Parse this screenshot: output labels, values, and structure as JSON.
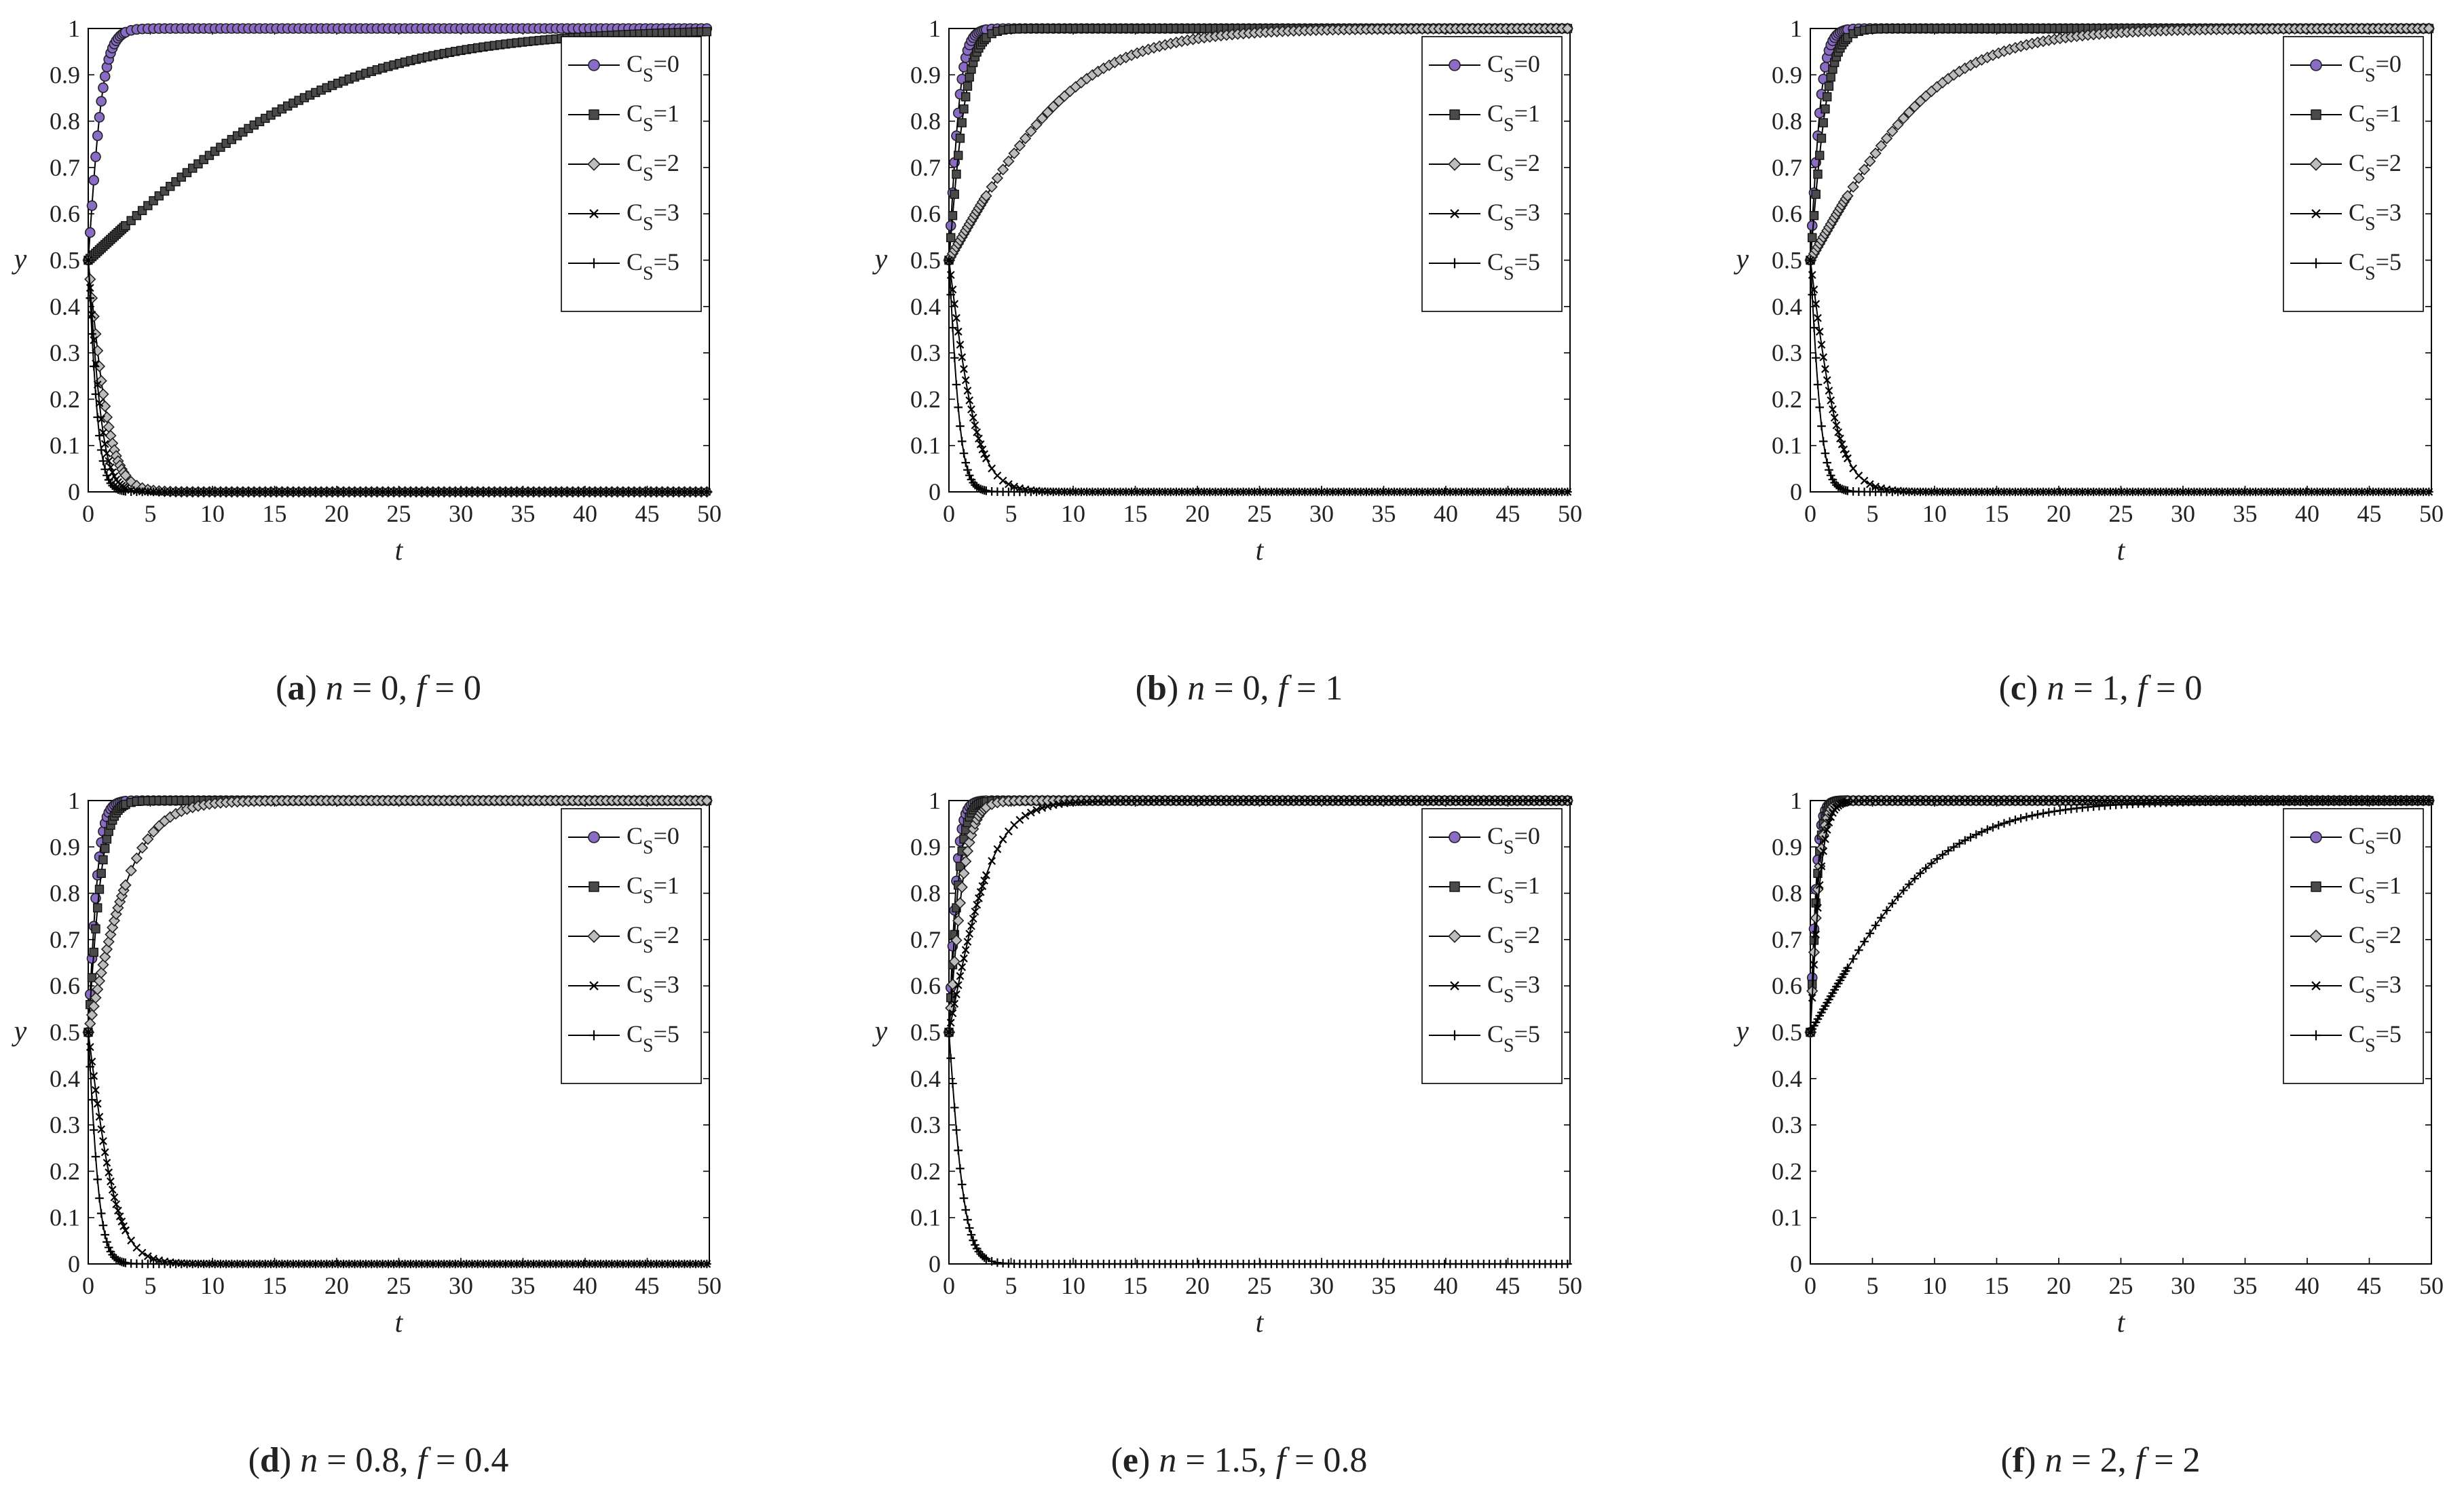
{
  "chart_data": [
    {
      "type": "line",
      "caption": {
        "letter": "a",
        "params": [
          {
            "symbol": "n",
            "value": "0"
          },
          {
            "symbol": "f",
            "value": "0"
          }
        ]
      },
      "xlabel": "t",
      "ylabel": "y",
      "xlim": [
        0,
        50
      ],
      "ylim": [
        0,
        1
      ],
      "xticks": [
        "0",
        "5",
        "10",
        "15",
        "20",
        "25",
        "30",
        "35",
        "40",
        "45",
        "50"
      ],
      "yticks": [
        "0",
        "0.1",
        "0.2",
        "0.3",
        "0.4",
        "0.5",
        "0.6",
        "0.7",
        "0.8",
        "0.9",
        "1"
      ],
      "legend_position": "top-right",
      "grid": false,
      "series": [
        {
          "name": "0",
          "marker": "circle",
          "shape": "rise",
          "k": 1.6,
          "end": 1
        },
        {
          "name": "1",
          "marker": "square",
          "shape": "rise",
          "k": 0.1,
          "end": 1
        },
        {
          "name": "2",
          "marker": "diamond",
          "shape": "decay",
          "k": 1.1,
          "end": 0
        },
        {
          "name": "3",
          "marker": "x",
          "shape": "decay",
          "k": 1.6,
          "end": 0
        },
        {
          "name": "5",
          "marker": "plus",
          "shape": "decay",
          "k": 2.2,
          "end": 0
        }
      ]
    },
    {
      "type": "line",
      "caption": {
        "letter": "b",
        "params": [
          {
            "symbol": "n",
            "value": "0"
          },
          {
            "symbol": "f",
            "value": "1"
          }
        ]
      },
      "xlabel": "t",
      "ylabel": "y",
      "xlim": [
        0,
        50
      ],
      "ylim": [
        0,
        1
      ],
      "xticks": [
        "0",
        "5",
        "10",
        "15",
        "20",
        "25",
        "30",
        "35",
        "40",
        "45",
        "50"
      ],
      "yticks": [
        "0",
        "0.1",
        "0.2",
        "0.3",
        "0.4",
        "0.5",
        "0.6",
        "0.7",
        "0.8",
        "0.9",
        "1"
      ],
      "legend_position": "top-right",
      "grid": false,
      "series": [
        {
          "name": "0",
          "marker": "circle",
          "shape": "rise",
          "k": 2.0,
          "end": 1
        },
        {
          "name": "1",
          "marker": "square",
          "shape": "rise",
          "k": 1.3,
          "end": 1
        },
        {
          "name": "2",
          "marker": "diamond",
          "shape": "rise",
          "k": 0.19,
          "end": 1
        },
        {
          "name": "3",
          "marker": "x",
          "shape": "decay",
          "k": 0.85,
          "end": 0
        },
        {
          "name": "5",
          "marker": "plus",
          "shape": "decay",
          "k": 2.0,
          "end": 0
        }
      ]
    },
    {
      "type": "line",
      "caption": {
        "letter": "c",
        "params": [
          {
            "symbol": "n",
            "value": "1"
          },
          {
            "symbol": "f",
            "value": "0"
          }
        ]
      },
      "xlabel": "t",
      "ylabel": "y",
      "xlim": [
        0,
        50
      ],
      "ylim": [
        0,
        1
      ],
      "xticks": [
        "0",
        "5",
        "10",
        "15",
        "20",
        "25",
        "30",
        "35",
        "40",
        "45",
        "50"
      ],
      "yticks": [
        "0",
        "0.1",
        "0.2",
        "0.3",
        "0.4",
        "0.5",
        "0.6",
        "0.7",
        "0.8",
        "0.9",
        "1"
      ],
      "legend_position": "top-right",
      "grid": false,
      "series": [
        {
          "name": "0",
          "marker": "circle",
          "shape": "rise",
          "k": 2.0,
          "end": 1
        },
        {
          "name": "1",
          "marker": "square",
          "shape": "rise",
          "k": 1.3,
          "end": 1
        },
        {
          "name": "2",
          "marker": "diamond",
          "shape": "rise",
          "k": 0.19,
          "end": 1
        },
        {
          "name": "3",
          "marker": "x",
          "shape": "decay",
          "k": 0.85,
          "end": 0
        },
        {
          "name": "5",
          "marker": "plus",
          "shape": "decay",
          "k": 2.0,
          "end": 0
        }
      ]
    },
    {
      "type": "line",
      "caption": {
        "letter": "d",
        "params": [
          {
            "symbol": "n",
            "value": "0.8"
          },
          {
            "symbol": "f",
            "value": "0.4"
          }
        ]
      },
      "xlabel": "t",
      "ylabel": "y",
      "xlim": [
        0,
        50
      ],
      "ylim": [
        0,
        1
      ],
      "xticks": [
        "0",
        "5",
        "10",
        "15",
        "20",
        "25",
        "30",
        "35",
        "40",
        "45",
        "50"
      ],
      "yticks": [
        "0",
        "0.1",
        "0.2",
        "0.3",
        "0.4",
        "0.5",
        "0.6",
        "0.7",
        "0.8",
        "0.9",
        "1"
      ],
      "legend_position": "top-right",
      "grid": false,
      "series": [
        {
          "name": "0",
          "marker": "circle",
          "shape": "rise",
          "k": 2.2,
          "end": 1
        },
        {
          "name": "1",
          "marker": "square",
          "shape": "rise",
          "k": 1.6,
          "end": 1
        },
        {
          "name": "2",
          "marker": "diamond",
          "shape": "rise",
          "k": 0.5,
          "end": 1
        },
        {
          "name": "3",
          "marker": "x",
          "shape": "decay",
          "k": 0.85,
          "end": 0
        },
        {
          "name": "5",
          "marker": "plus",
          "shape": "decay",
          "k": 2.0,
          "end": 0
        }
      ]
    },
    {
      "type": "line",
      "caption": {
        "letter": "e",
        "params": [
          {
            "symbol": "n",
            "value": "1.5"
          },
          {
            "symbol": "f",
            "value": "0.8"
          }
        ]
      },
      "xlabel": "t",
      "ylabel": "y",
      "xlim": [
        0,
        50
      ],
      "ylim": [
        0,
        1
      ],
      "xticks": [
        "0",
        "5",
        "10",
        "15",
        "20",
        "25",
        "30",
        "35",
        "40",
        "45",
        "50"
      ],
      "yticks": [
        "0",
        "0.1",
        "0.2",
        "0.3",
        "0.4",
        "0.5",
        "0.6",
        "0.7",
        "0.8",
        "0.9",
        "1"
      ],
      "legend_position": "top-right",
      "grid": false,
      "series": [
        {
          "name": "0",
          "marker": "circle",
          "shape": "rise",
          "k": 2.6,
          "end": 1
        },
        {
          "name": "1",
          "marker": "square",
          "shape": "rise",
          "k": 2.0,
          "end": 1
        },
        {
          "name": "2",
          "marker": "diamond",
          "shape": "rise",
          "k": 1.4,
          "end": 1
        },
        {
          "name": "3",
          "marker": "x",
          "shape": "rise",
          "k": 0.55,
          "end": 1
        },
        {
          "name": "5",
          "marker": "plus",
          "shape": "decay",
          "k": 1.5,
          "end": 0
        }
      ]
    },
    {
      "type": "line",
      "caption": {
        "letter": "f",
        "params": [
          {
            "symbol": "n",
            "value": "2"
          },
          {
            "symbol": "f",
            "value": "2"
          }
        ]
      },
      "xlabel": "t",
      "ylabel": "y",
      "xlim": [
        0,
        50
      ],
      "ylim": [
        0,
        1
      ],
      "xticks": [
        "0",
        "5",
        "10",
        "15",
        "20",
        "25",
        "30",
        "35",
        "40",
        "45",
        "50"
      ],
      "yticks": [
        "0",
        "0.1",
        "0.2",
        "0.3",
        "0.4",
        "0.5",
        "0.6",
        "0.7",
        "0.8",
        "0.9",
        "1"
      ],
      "legend_position": "top-right",
      "grid": false,
      "series": [
        {
          "name": "0",
          "marker": "circle",
          "shape": "rise",
          "k": 3.2,
          "end": 1
        },
        {
          "name": "1",
          "marker": "square",
          "shape": "rise",
          "k": 2.8,
          "end": 1
        },
        {
          "name": "2",
          "marker": "diamond",
          "shape": "rise",
          "k": 2.4,
          "end": 1
        },
        {
          "name": "3",
          "marker": "x",
          "shape": "rise",
          "k": 2.0,
          "end": 1
        },
        {
          "name": "5",
          "marker": "plus",
          "shape": "rise",
          "k": 0.19,
          "end": 1
        }
      ]
    }
  ],
  "legend_prefix": {
    "base": "C",
    "subscript": "S",
    "separator": "="
  },
  "colors": {
    "circle_fill": "#8a6cc6",
    "square_fill": "#4a4a4a",
    "diamond_fill": "#bdbdbd",
    "line": "#000000"
  }
}
